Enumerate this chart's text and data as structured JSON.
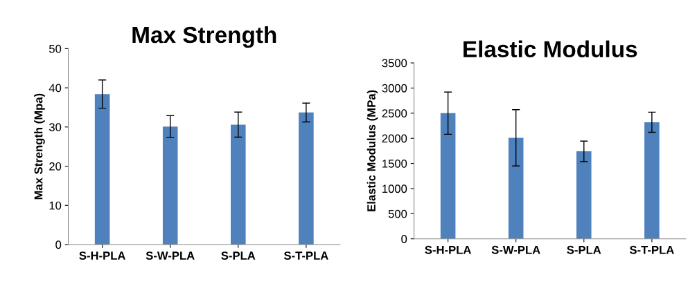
{
  "chart_data": [
    {
      "type": "bar",
      "title": "Max Strength",
      "ylabel": "Max Strength (Mpa)",
      "categories": [
        "S-H-PLA",
        "S-W-PLA",
        "S-PLA",
        "S-T-PLA"
      ],
      "values": [
        38.4,
        30.1,
        30.6,
        33.7
      ],
      "errors": [
        3.6,
        2.8,
        3.2,
        2.4
      ],
      "color": "#4f81bd",
      "ylim": [
        0,
        50
      ],
      "yticks": [
        0,
        10,
        20,
        30,
        40,
        50
      ]
    },
    {
      "type": "bar",
      "title": "Elastic Modulus",
      "ylabel": "Elastic Modulus (MPa)",
      "categories": [
        "S-H-PLA",
        "S-W-PLA",
        "S-PLA",
        "S-T-PLA"
      ],
      "values": [
        2500,
        2010,
        1740,
        2320
      ],
      "errors": [
        420,
        560,
        205,
        200
      ],
      "color": "#4f81bd",
      "ylim": [
        0,
        3500
      ],
      "yticks": [
        0,
        500,
        1000,
        1500,
        2000,
        2500,
        3000,
        3500
      ]
    }
  ]
}
